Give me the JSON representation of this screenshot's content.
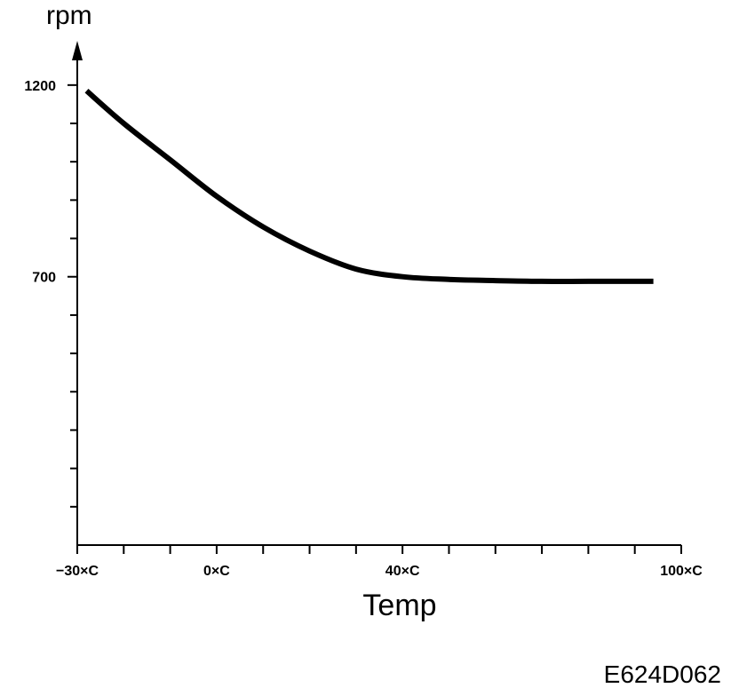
{
  "chart_data": {
    "type": "line",
    "title": "",
    "xlabel": "Temp",
    "ylabel": "rpm",
    "x_tick_labels": [
      {
        "x": -30,
        "label": "−30×C"
      },
      {
        "x": 0,
        "label": "0×C"
      },
      {
        "x": 40,
        "label": "40×C"
      },
      {
        "x": 100,
        "label": "100×C"
      }
    ],
    "y_tick_labels": [
      {
        "y": 1200,
        "label": "1200"
      },
      {
        "y": 700,
        "label": "700"
      }
    ],
    "minor_x_ticks": [
      -20,
      -10,
      10,
      20,
      30,
      50,
      60,
      70,
      80,
      90
    ],
    "minor_y_ticks": [
      1100,
      1000,
      900,
      800,
      600,
      500,
      400,
      300,
      200,
      100
    ],
    "xlim": [
      -30,
      100
    ],
    "ylim": [
      0,
      1300
    ],
    "grid": false,
    "series": [
      {
        "x": [
          -28,
          -20,
          -10,
          0,
          10,
          20,
          30,
          40,
          50,
          60,
          70,
          80,
          94
        ],
        "y": [
          1185,
          1100,
          1005,
          910,
          830,
          767,
          720,
          700,
          693,
          690,
          688,
          688,
          688
        ]
      }
    ],
    "line_color": "#000000"
  },
  "figure_code": "E624D062"
}
